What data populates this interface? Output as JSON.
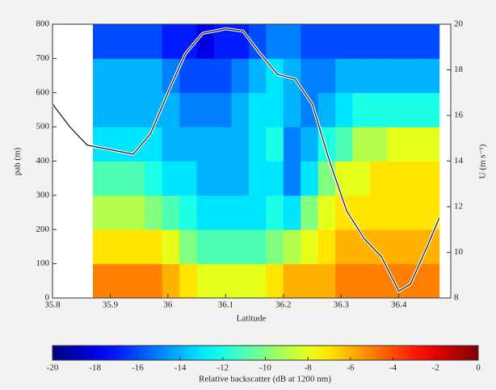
{
  "chart_data": {
    "type": "heatmap",
    "xlabel": "Latitude",
    "ylabel": "pab (m)",
    "y2label": "U (m s⁻¹)",
    "xlim": [
      35.8,
      36.49
    ],
    "xticks": [
      35.8,
      35.9,
      36,
      36.1,
      36.2,
      36.3,
      36.4
    ],
    "ylim": [
      0,
      800
    ],
    "yticks": [
      0,
      100,
      200,
      300,
      400,
      500,
      600,
      700,
      800
    ],
    "y2lim": [
      8,
      20
    ],
    "y2ticks": [
      8,
      10,
      12,
      14,
      16,
      18,
      20
    ],
    "heatmap": {
      "x": [
        35.885,
        35.915,
        35.945,
        35.975,
        36.005,
        36.035,
        36.065,
        36.095,
        36.125,
        36.155,
        36.185,
        36.215,
        36.245,
        36.275,
        36.305,
        36.335,
        36.365,
        36.395,
        36.425,
        36.455
      ],
      "y": [
        50,
        150,
        250,
        350,
        450,
        550,
        650,
        750
      ],
      "z": [
        [
          -5,
          -5,
          -5,
          -5,
          -6,
          -7,
          -8,
          -8,
          -8,
          -8,
          -7,
          -6,
          -6,
          -6,
          -5,
          -5,
          -5,
          -5,
          -5,
          -5
        ],
        [
          -7,
          -7,
          -7,
          -7,
          -8,
          -10,
          -11,
          -11,
          -11,
          -11,
          -10,
          -9,
          -8,
          -7,
          -6,
          -6,
          -6,
          -6,
          -6,
          -6
        ],
        [
          -9,
          -9,
          -9,
          -10,
          -11,
          -12,
          -13,
          -13,
          -13,
          -13,
          -12,
          -13,
          -10,
          -8,
          -7,
          -7,
          -7,
          -7,
          -7,
          -7
        ],
        [
          -11,
          -11,
          -11,
          -12,
          -13,
          -13,
          -14,
          -14,
          -14,
          -13,
          -13,
          -15,
          -13,
          -10,
          -8,
          -8,
          -7,
          -7,
          -7,
          -7
        ],
        [
          -13,
          -13,
          -13,
          -13,
          -14,
          -14,
          -14,
          -14,
          -14,
          -13,
          -12,
          -15,
          -14,
          -12,
          -11,
          -9,
          -9,
          -8,
          -8,
          -8
        ],
        [
          -14,
          -14,
          -14,
          -14,
          -14,
          -15,
          -15,
          -15,
          -14,
          -13,
          -13,
          -14,
          -15,
          -14,
          -13,
          -12,
          -12,
          -12,
          -12,
          -12
        ],
        [
          -14,
          -14,
          -14,
          -14,
          -15,
          -16,
          -16,
          -16,
          -15,
          -14,
          -13,
          -14,
          -15,
          -15,
          -14,
          -14,
          -14,
          -14,
          -14,
          -14
        ],
        [
          -16,
          -16,
          -16,
          -16,
          -17,
          -17,
          -18,
          -17,
          -17,
          -16,
          -15,
          -15,
          -16,
          -16,
          -16,
          -16,
          -16,
          -16,
          -16,
          -16
        ]
      ]
    },
    "series": [
      {
        "color": "#111111",
        "axis": "y2",
        "x": [
          35.8,
          35.83,
          35.86,
          35.9,
          35.94,
          35.97,
          36.0,
          36.03,
          36.06,
          36.1,
          36.13,
          36.16,
          36.19,
          36.22,
          36.25,
          36.28,
          36.31,
          36.34,
          36.37,
          36.4,
          36.42,
          36.45,
          36.47
        ],
        "values": [
          16.5,
          15.5,
          14.7,
          14.5,
          14.3,
          15.2,
          17.0,
          18.7,
          19.6,
          19.8,
          19.7,
          18.7,
          17.8,
          17.6,
          16.5,
          14.0,
          11.8,
          10.6,
          9.8,
          8.3,
          8.6,
          10.3,
          11.5
        ]
      }
    ],
    "colorbar": {
      "label": "Relative backscatter (dB at 1200 nm)",
      "colormap": "jet",
      "lim": [
        -20,
        0
      ],
      "ticks": [
        -20,
        -18,
        -16,
        -14,
        -12,
        -10,
        -8,
        -6,
        -4,
        -2,
        0
      ]
    }
  }
}
